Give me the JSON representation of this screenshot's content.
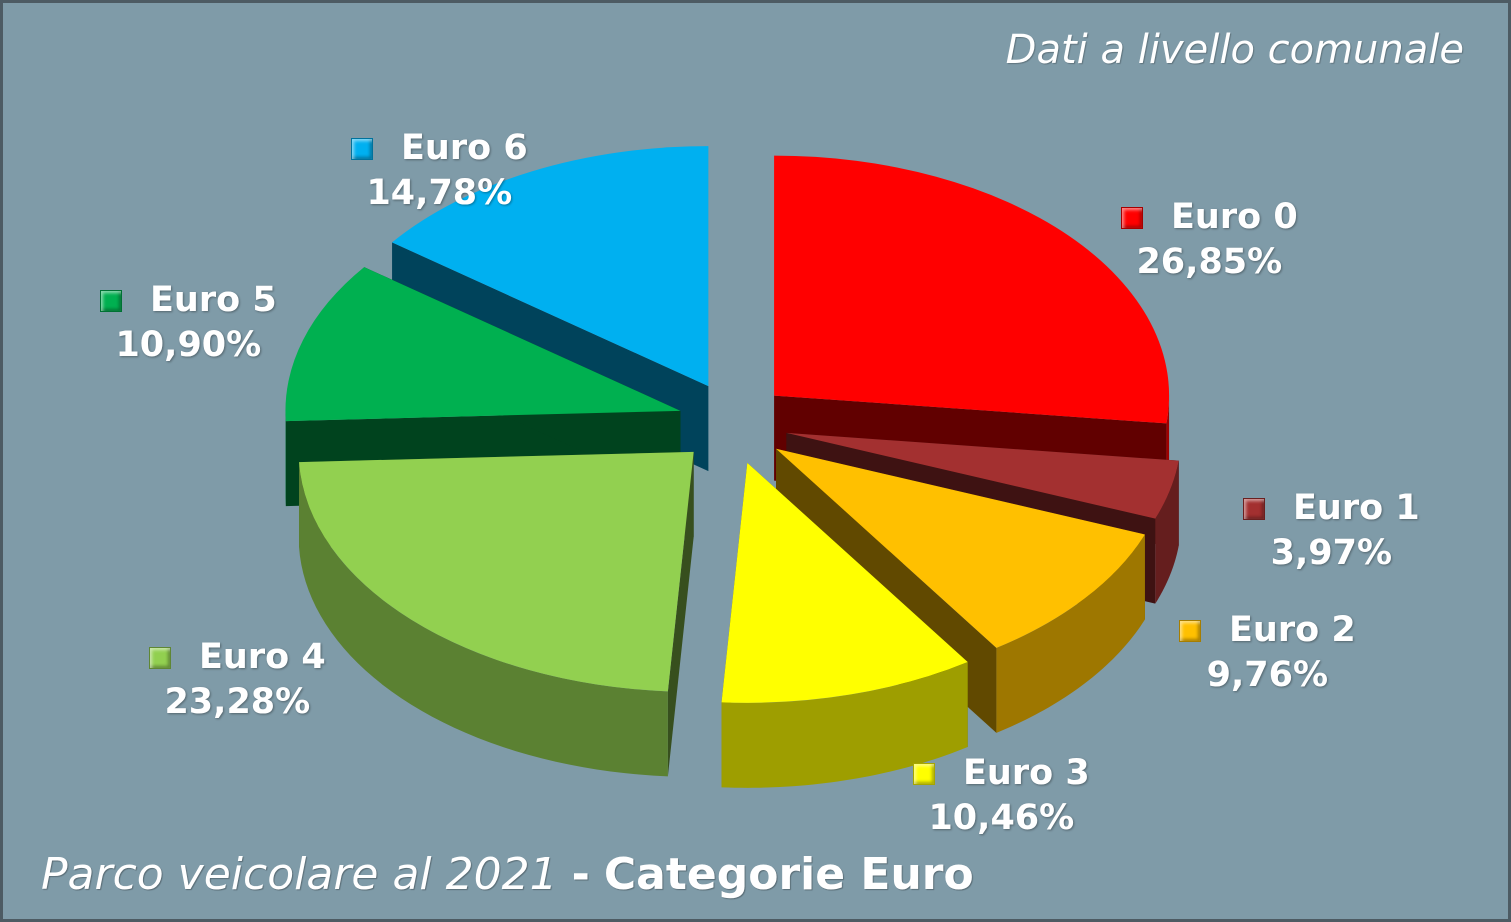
{
  "title_regular": "Parco veicolare al 2021",
  "title_separator": "-",
  "title_bold": "Categorie Euro",
  "subtitle": "Dati a livello comunale",
  "chart_data": {
    "type": "pie",
    "title": "Parco veicolare al 2021 - Categorie Euro",
    "subtitle": "Dati a livello comunale",
    "style": "3d-exploded",
    "labels": [
      "Euro 0",
      "Euro 1",
      "Euro 2",
      "Euro 3",
      "Euro 4",
      "Euro 5",
      "Euro 6"
    ],
    "values": [
      26.85,
      3.97,
      9.76,
      10.46,
      23.28,
      10.9,
      14.78
    ],
    "value_labels": [
      "26,85%",
      "3,97%",
      "9,76%",
      "10,46%",
      "23,28%",
      "10,90%",
      "14,78%"
    ],
    "colors": [
      "#ff0000",
      "#a33030",
      "#ffc000",
      "#ffff00",
      "#92d050",
      "#00b050",
      "#00b0f0"
    ],
    "unit": "%",
    "legend": "none"
  }
}
